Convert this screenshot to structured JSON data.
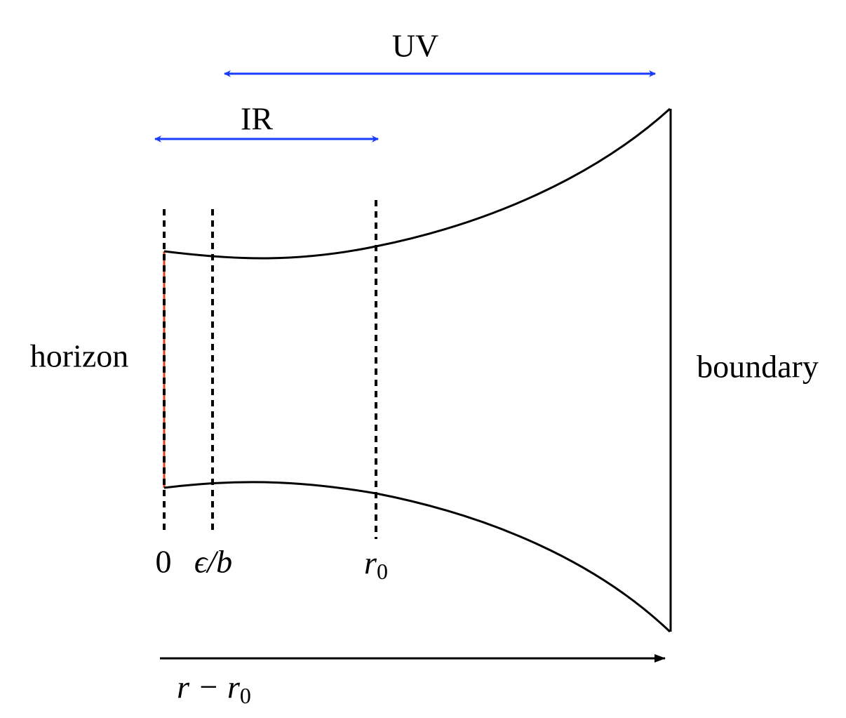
{
  "labels": {
    "uv": "UV",
    "ir": "IR",
    "horizon": "horizon",
    "boundary": "boundary",
    "zero": "0",
    "epsilon_b": "ϵ/b",
    "r0": {
      "base": "r",
      "sub": "0"
    },
    "r_minus_r0": {
      "base": "r − r",
      "sub": "0"
    }
  }
}
